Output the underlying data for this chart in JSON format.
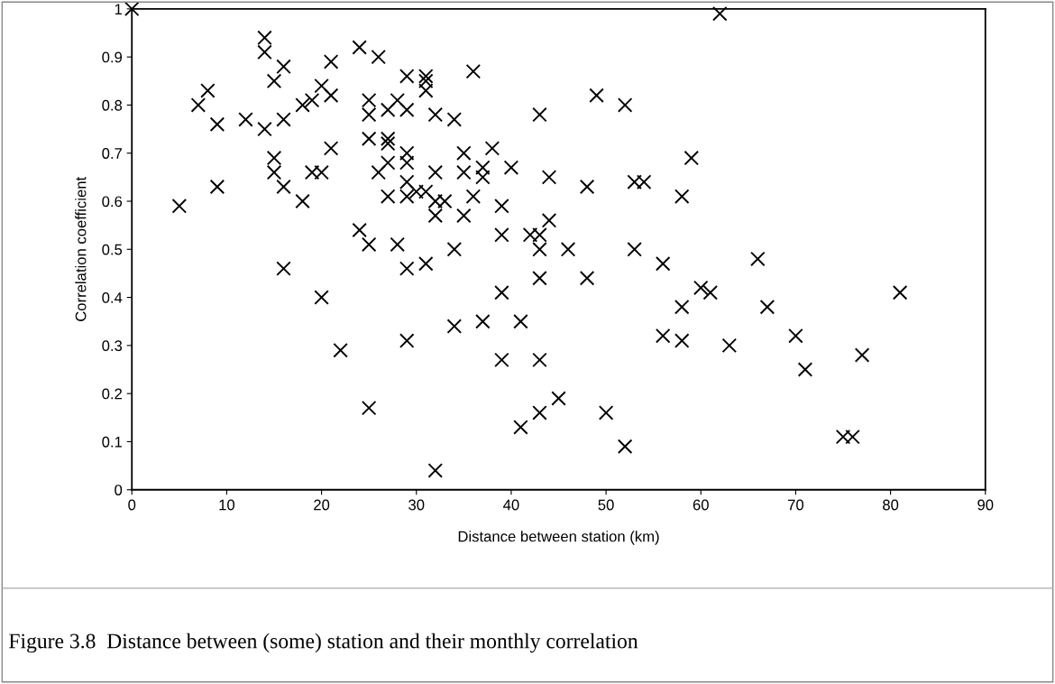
{
  "chart_data": {
    "type": "scatter",
    "xlabel": "Distance between station (km)",
    "ylabel": "Correlation coefficient",
    "annotations": [
      "Figure 3.8  Distance between (some) station and their monthly correlation"
    ],
    "marker": "cross",
    "xlim": [
      0,
      90
    ],
    "xticks": [
      0,
      10,
      20,
      30,
      40,
      50,
      60,
      70,
      80,
      90
    ],
    "ylim": [
      0,
      1
    ],
    "yticks": [
      0,
      0.1,
      0.2,
      0.3,
      0.4,
      0.5,
      0.6,
      0.7,
      0.8,
      0.9,
      1
    ],
    "series": [
      {
        "color": "#000000",
        "x": [
          0,
          5,
          7,
          8,
          9,
          9,
          12,
          14,
          14,
          14,
          15,
          15,
          15,
          16,
          16,
          16,
          16,
          18,
          18,
          19,
          19,
          20,
          20,
          20,
          21,
          21,
          21,
          22,
          24,
          24,
          25,
          25,
          25,
          25,
          25,
          26,
          26,
          27,
          27,
          27,
          27,
          27,
          28,
          28,
          29,
          29,
          29,
          29,
          29,
          29,
          29,
          29,
          30,
          31,
          31,
          31,
          31,
          31,
          32,
          32,
          32,
          32,
          32,
          33,
          34,
          34,
          34,
          35,
          35,
          35,
          36,
          36,
          37,
          37,
          37,
          38,
          39,
          39,
          39,
          39,
          40,
          41,
          41,
          42,
          43,
          43,
          43,
          43,
          43,
          43,
          44,
          44,
          45,
          46,
          48,
          48,
          49,
          50,
          52,
          52,
          53,
          53,
          54,
          56,
          56,
          58,
          58,
          58,
          59,
          60,
          61,
          62,
          63,
          66,
          67,
          70,
          71,
          75,
          76,
          77,
          81
        ],
        "values": [
          1.0,
          0.59,
          0.8,
          0.83,
          0.76,
          0.63,
          0.77,
          0.94,
          0.91,
          0.75,
          0.85,
          0.69,
          0.66,
          0.88,
          0.77,
          0.63,
          0.46,
          0.8,
          0.6,
          0.81,
          0.66,
          0.84,
          0.66,
          0.4,
          0.89,
          0.82,
          0.71,
          0.29,
          0.92,
          0.54,
          0.81,
          0.78,
          0.73,
          0.51,
          0.17,
          0.9,
          0.66,
          0.79,
          0.73,
          0.72,
          0.68,
          0.61,
          0.81,
          0.51,
          0.86,
          0.79,
          0.7,
          0.68,
          0.64,
          0.61,
          0.46,
          0.31,
          0.62,
          0.86,
          0.85,
          0.83,
          0.47,
          0.62,
          0.78,
          0.66,
          0.6,
          0.57,
          0.04,
          0.6,
          0.77,
          0.5,
          0.34,
          0.7,
          0.66,
          0.57,
          0.87,
          0.61,
          0.67,
          0.65,
          0.35,
          0.71,
          0.59,
          0.53,
          0.41,
          0.27,
          0.67,
          0.35,
          0.13,
          0.53,
          0.78,
          0.53,
          0.5,
          0.44,
          0.27,
          0.16,
          0.65,
          0.56,
          0.19,
          0.5,
          0.63,
          0.44,
          0.82,
          0.16,
          0.8,
          0.09,
          0.64,
          0.5,
          0.64,
          0.47,
          0.32,
          0.61,
          0.38,
          0.31,
          0.69,
          0.42,
          0.41,
          0.99,
          0.3,
          0.48,
          0.38,
          0.32,
          0.25,
          0.11,
          0.11,
          0.28,
          0.41
        ]
      }
    ]
  }
}
